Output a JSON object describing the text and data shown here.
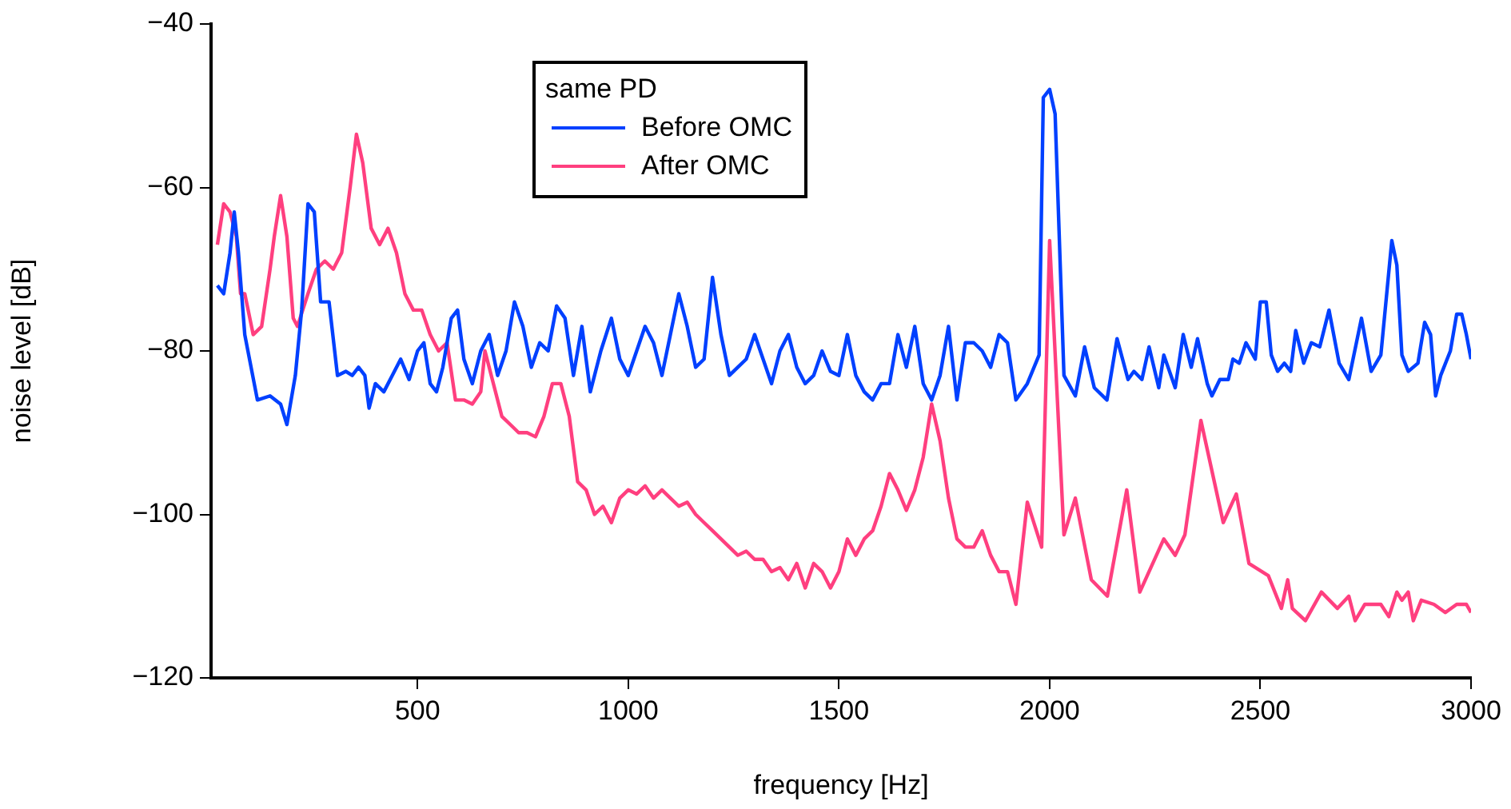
{
  "chart_data": {
    "type": "line",
    "xlabel": "frequency [Hz]",
    "ylabel": "noise level [dB]",
    "legend_title": "same PD",
    "legend": "top",
    "grid": false,
    "marker": "none",
    "line_style": "solid",
    "xlim": [
      10,
      3000
    ],
    "xticks": [
      500,
      1000,
      1500,
      2000,
      2500,
      3000
    ],
    "ylim": [
      -120,
      -40
    ],
    "yticks": [
      -120,
      -100,
      -80,
      -60,
      -40
    ],
    "series": [
      {
        "name": "Before OMC",
        "color": "#0040ff",
        "x": [
          25,
          40,
          55,
          65,
          75,
          90,
          120,
          150,
          175,
          190,
          210,
          225,
          240,
          255,
          270,
          290,
          310,
          330,
          345,
          360,
          375,
          385,
          400,
          420,
          440,
          460,
          480,
          500,
          515,
          530,
          545,
          560,
          580,
          595,
          610,
          630,
          650,
          670,
          690,
          710,
          730,
          750,
          770,
          790,
          810,
          830,
          850,
          870,
          890,
          910,
          935,
          960,
          980,
          1000,
          1020,
          1040,
          1060,
          1080,
          1100,
          1120,
          1140,
          1160,
          1180,
          1200,
          1220,
          1240,
          1260,
          1280,
          1300,
          1320,
          1340,
          1360,
          1380,
          1400,
          1420,
          1440,
          1460,
          1480,
          1500,
          1520,
          1540,
          1560,
          1580,
          1600,
          1620,
          1640,
          1660,
          1680,
          1700,
          1720,
          1740,
          1760,
          1780,
          1800,
          1820,
          1840,
          1860,
          1880,
          1900,
          1920,
          1947,
          1975,
          1985,
          2000,
          2013,
          2034,
          2061,
          2083,
          2106,
          2136,
          2160,
          2186,
          2200,
          2219,
          2236,
          2259,
          2271,
          2298,
          2317,
          2336,
          2351,
          2374,
          2385,
          2404,
          2424,
          2435,
          2450,
          2466,
          2488,
          2500,
          2514,
          2526,
          2541,
          2557,
          2572,
          2584,
          2603,
          2621,
          2641,
          2663,
          2687,
          2710,
          2740,
          2763,
          2786,
          2812,
          2824,
          2836,
          2851,
          2874,
          2890,
          2904,
          2916,
          2928,
          2951,
          2966,
          2978,
          2989,
          3000
        ],
        "values": [
          -72,
          -73,
          -68,
          -63,
          -68,
          -78,
          -86,
          -85.5,
          -86.5,
          -89,
          -83,
          -75,
          -62,
          -63,
          -74,
          -74,
          -83,
          -82.5,
          -83,
          -82,
          -83,
          -87,
          -84,
          -85,
          -83,
          -81,
          -83.5,
          -80,
          -79,
          -84,
          -85,
          -82,
          -76,
          -75,
          -81,
          -84,
          -80,
          -78,
          -83,
          -80,
          -74,
          -77,
          -82,
          -79,
          -80,
          -74.5,
          -76,
          -83,
          -77,
          -85,
          -80,
          -76,
          -81,
          -83,
          -80,
          -77,
          -79,
          -83,
          -78,
          -73,
          -77,
          -82,
          -81,
          -71,
          -78,
          -83,
          -82,
          -81,
          -78,
          -81,
          -84,
          -80,
          -78,
          -82,
          -84,
          -83,
          -80,
          -82.5,
          -83,
          -78,
          -83,
          -85,
          -86,
          -84,
          -84,
          -78,
          -82,
          -77,
          -84,
          -86,
          -83,
          -77,
          -86,
          -79,
          -79,
          -80,
          -82,
          -78,
          -79,
          -86,
          -84,
          -80.5,
          -49,
          -48,
          -51,
          -83,
          -85.5,
          -79.5,
          -84.5,
          -86,
          -78.5,
          -83.5,
          -82.5,
          -83.5,
          -79.5,
          -84.5,
          -80.5,
          -84.5,
          -78,
          -82,
          -78.5,
          -84,
          -85.5,
          -83.5,
          -83.5,
          -81,
          -81.5,
          -79,
          -81,
          -74,
          -74,
          -80.5,
          -82.5,
          -81.5,
          -82.5,
          -77.5,
          -81.5,
          -79,
          -79.5,
          -75,
          -81.5,
          -83.5,
          -76,
          -82.5,
          -80.5,
          -66.5,
          -69.5,
          -80.5,
          -82.5,
          -81.5,
          -76.5,
          -78,
          -85.5,
          -83,
          -80,
          -75.5,
          -75.5,
          -78,
          -81
        ]
      },
      {
        "name": "After OMC",
        "color": "#ff3f7f",
        "x": [
          25,
          40,
          55,
          70,
          80,
          90,
          110,
          130,
          150,
          160,
          175,
          190,
          205,
          215,
          240,
          260,
          280,
          300,
          320,
          340,
          355,
          370,
          390,
          410,
          430,
          450,
          470,
          490,
          510,
          530,
          550,
          570,
          590,
          610,
          630,
          650,
          660,
          675,
          700,
          720,
          740,
          760,
          780,
          800,
          820,
          840,
          860,
          880,
          900,
          920,
          940,
          960,
          980,
          1000,
          1020,
          1040,
          1060,
          1080,
          1100,
          1120,
          1140,
          1160,
          1180,
          1200,
          1220,
          1240,
          1260,
          1280,
          1300,
          1320,
          1340,
          1360,
          1380,
          1400,
          1420,
          1440,
          1460,
          1480,
          1500,
          1520,
          1540,
          1560,
          1580,
          1600,
          1620,
          1640,
          1660,
          1680,
          1700,
          1720,
          1740,
          1760,
          1780,
          1800,
          1820,
          1840,
          1860,
          1880,
          1900,
          1920,
          1947,
          1981,
          2000,
          2034,
          2061,
          2099,
          2137,
          2183,
          2214,
          2271,
          2298,
          2321,
          2359,
          2412,
          2443,
          2473,
          2519,
          2550,
          2565,
          2576,
          2607,
          2645,
          2683,
          2710,
          2725,
          2748,
          2786,
          2805,
          2824,
          2836,
          2851,
          2863,
          2882,
          2912,
          2939,
          2966,
          2989,
          3000
        ],
        "values": [
          -67,
          -62,
          -63,
          -66,
          -73,
          -73,
          -78,
          -77,
          -70,
          -66,
          -61,
          -66,
          -76,
          -77,
          -73,
          -70,
          -69,
          -70,
          -68,
          -60,
          -53.5,
          -57,
          -65,
          -67,
          -65,
          -68,
          -73,
          -75,
          -75,
          -78,
          -80,
          -79,
          -86,
          -86,
          -86.5,
          -85,
          -80,
          -83,
          -88,
          -89,
          -90,
          -90,
          -90.5,
          -88,
          -84,
          -84,
          -88,
          -96,
          -97,
          -100,
          -99,
          -101,
          -98,
          -97,
          -97.5,
          -96.5,
          -98,
          -97,
          -98,
          -99,
          -98.5,
          -100,
          -101,
          -102,
          -103,
          -104,
          -105,
          -104.5,
          -105.5,
          -105.5,
          -107,
          -106.5,
          -108,
          -106,
          -109,
          -106,
          -107,
          -109,
          -107,
          -103,
          -105,
          -103,
          -102,
          -99,
          -95,
          -97,
          -99.5,
          -97,
          -93,
          -86.5,
          -91,
          -98,
          -103,
          -104,
          -104,
          -102,
          -105,
          -107,
          -107,
          -111,
          -98.5,
          -104,
          -66.5,
          -102.5,
          -98,
          -108,
          -110,
          -97,
          -109.5,
          -103,
          -105,
          -102.5,
          -88.5,
          -101,
          -97.5,
          -106,
          -107.5,
          -111.5,
          -108,
          -111.5,
          -113,
          -109.5,
          -111.5,
          -110,
          -113,
          -111,
          -111,
          -112.5,
          -109.5,
          -110.5,
          -109.5,
          -113,
          -110.5,
          -111,
          -112,
          -111,
          -111,
          -112
        ]
      }
    ]
  }
}
